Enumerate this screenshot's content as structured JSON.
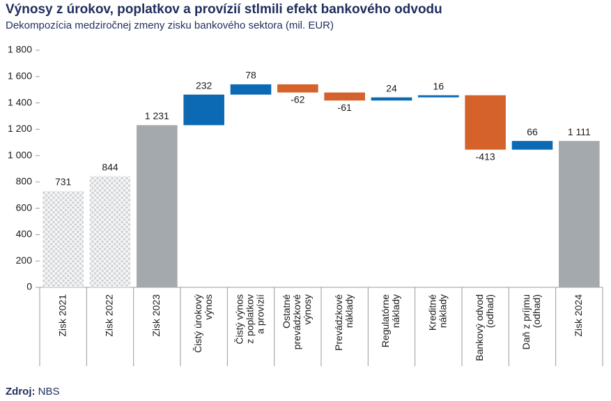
{
  "chart_data": {
    "type": "waterfall",
    "title": "Výnosy z úrokov, poplatkov a provízií stlmili efekt bankového odvodu",
    "subtitle": "Dekompozícia medziročnej zmeny zisku bankového sektora (mil. EUR)",
    "source_label": "Zdroj:",
    "source": "NBS",
    "categories": [
      [
        "Zisk 2021"
      ],
      [
        "Zisk 2022"
      ],
      [
        "Zisk 2023"
      ],
      [
        "Čistý úrokový",
        "výnos"
      ],
      [
        "Čistý výnos",
        "z poplatkov",
        "a provízií"
      ],
      [
        "Ostatné",
        "prevádzkové",
        "výnosy"
      ],
      [
        "Prevádzkové",
        "náklady"
      ],
      [
        "Regulatórne",
        "náklady"
      ],
      [
        "Kreditné",
        "náklady"
      ],
      [
        "Bankový odvod",
        "(odhad)"
      ],
      [
        "Daň z príjmu",
        "(odhad)"
      ],
      [
        "Zisk 2024"
      ]
    ],
    "values": [
      731,
      844,
      1231,
      232,
      78,
      -62,
      -61,
      24,
      16,
      -413,
      66,
      1111
    ],
    "value_labels": [
      "731",
      "844",
      "1 231",
      "232",
      "78",
      "-62",
      "-61",
      "24",
      "16",
      "-413",
      "66",
      "1 111"
    ],
    "totals": [
      true,
      true,
      true,
      false,
      false,
      false,
      false,
      false,
      false,
      false,
      false,
      true
    ],
    "hatched": [
      true,
      true,
      false,
      false,
      false,
      false,
      false,
      false,
      false,
      false,
      false,
      false
    ],
    "colors": [
      "#a7acb0",
      "#a7acb0",
      "#a4a9ad",
      "#0c69b4",
      "#0c69b4",
      "#d4622a",
      "#d4622a",
      "#0c69b4",
      "#0c69b4",
      "#d4622a",
      "#0c69b4",
      "#a4a9ad"
    ],
    "ylim": [
      0,
      1800
    ],
    "yticks": [
      0,
      200,
      400,
      600,
      800,
      {
        "value": 1000,
        "label": "1 000"
      },
      {
        "value": 1200,
        "label": "1 200"
      },
      {
        "value": 1400,
        "label": "1 400"
      },
      {
        "value": 1600,
        "label": "1 600"
      },
      {
        "value": 1800,
        "label": "1 800"
      }
    ]
  }
}
